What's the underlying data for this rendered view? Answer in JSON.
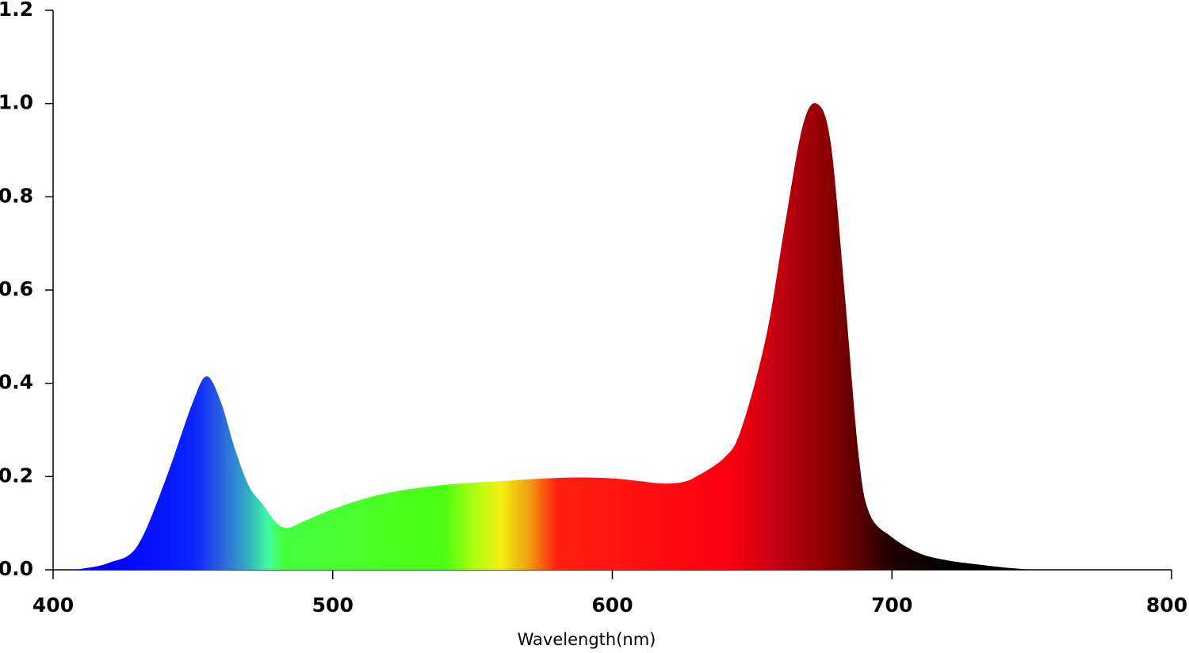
{
  "chart_data": {
    "type": "area",
    "x_label": "Wavelength(nm)",
    "x": [
      405,
      410,
      420,
      430,
      440,
      450,
      455,
      460,
      465,
      470,
      475,
      480,
      484,
      490,
      500,
      510,
      520,
      530,
      540,
      550,
      560,
      570,
      580,
      590,
      600,
      610,
      618,
      625,
      630,
      640,
      646,
      655,
      662,
      668,
      673,
      678,
      683,
      688,
      692,
      700,
      710,
      720,
      730,
      740,
      750
    ],
    "y": [
      0,
      0.002,
      0.015,
      0.05,
      0.19,
      0.36,
      0.415,
      0.36,
      0.26,
      0.18,
      0.14,
      0.1,
      0.09,
      0.105,
      0.13,
      0.15,
      0.165,
      0.175,
      0.182,
      0.187,
      0.19,
      0.194,
      0.197,
      0.198,
      0.196,
      0.19,
      0.185,
      0.188,
      0.2,
      0.24,
      0.3,
      0.5,
      0.75,
      0.95,
      1.0,
      0.92,
      0.6,
      0.25,
      0.12,
      0.07,
      0.035,
      0.02,
      0.012,
      0.005,
      0
    ],
    "xlim": [
      400,
      800
    ],
    "ylim": [
      0,
      1.2
    ],
    "xticks": [
      400,
      500,
      600,
      700,
      800
    ],
    "yticks": [
      {
        "value": 0,
        "label": "0.0"
      },
      0.2,
      0.4,
      0.6,
      0.8,
      {
        "value": 1,
        "label": "1.0"
      },
      1.2
    ],
    "grid": false
  }
}
